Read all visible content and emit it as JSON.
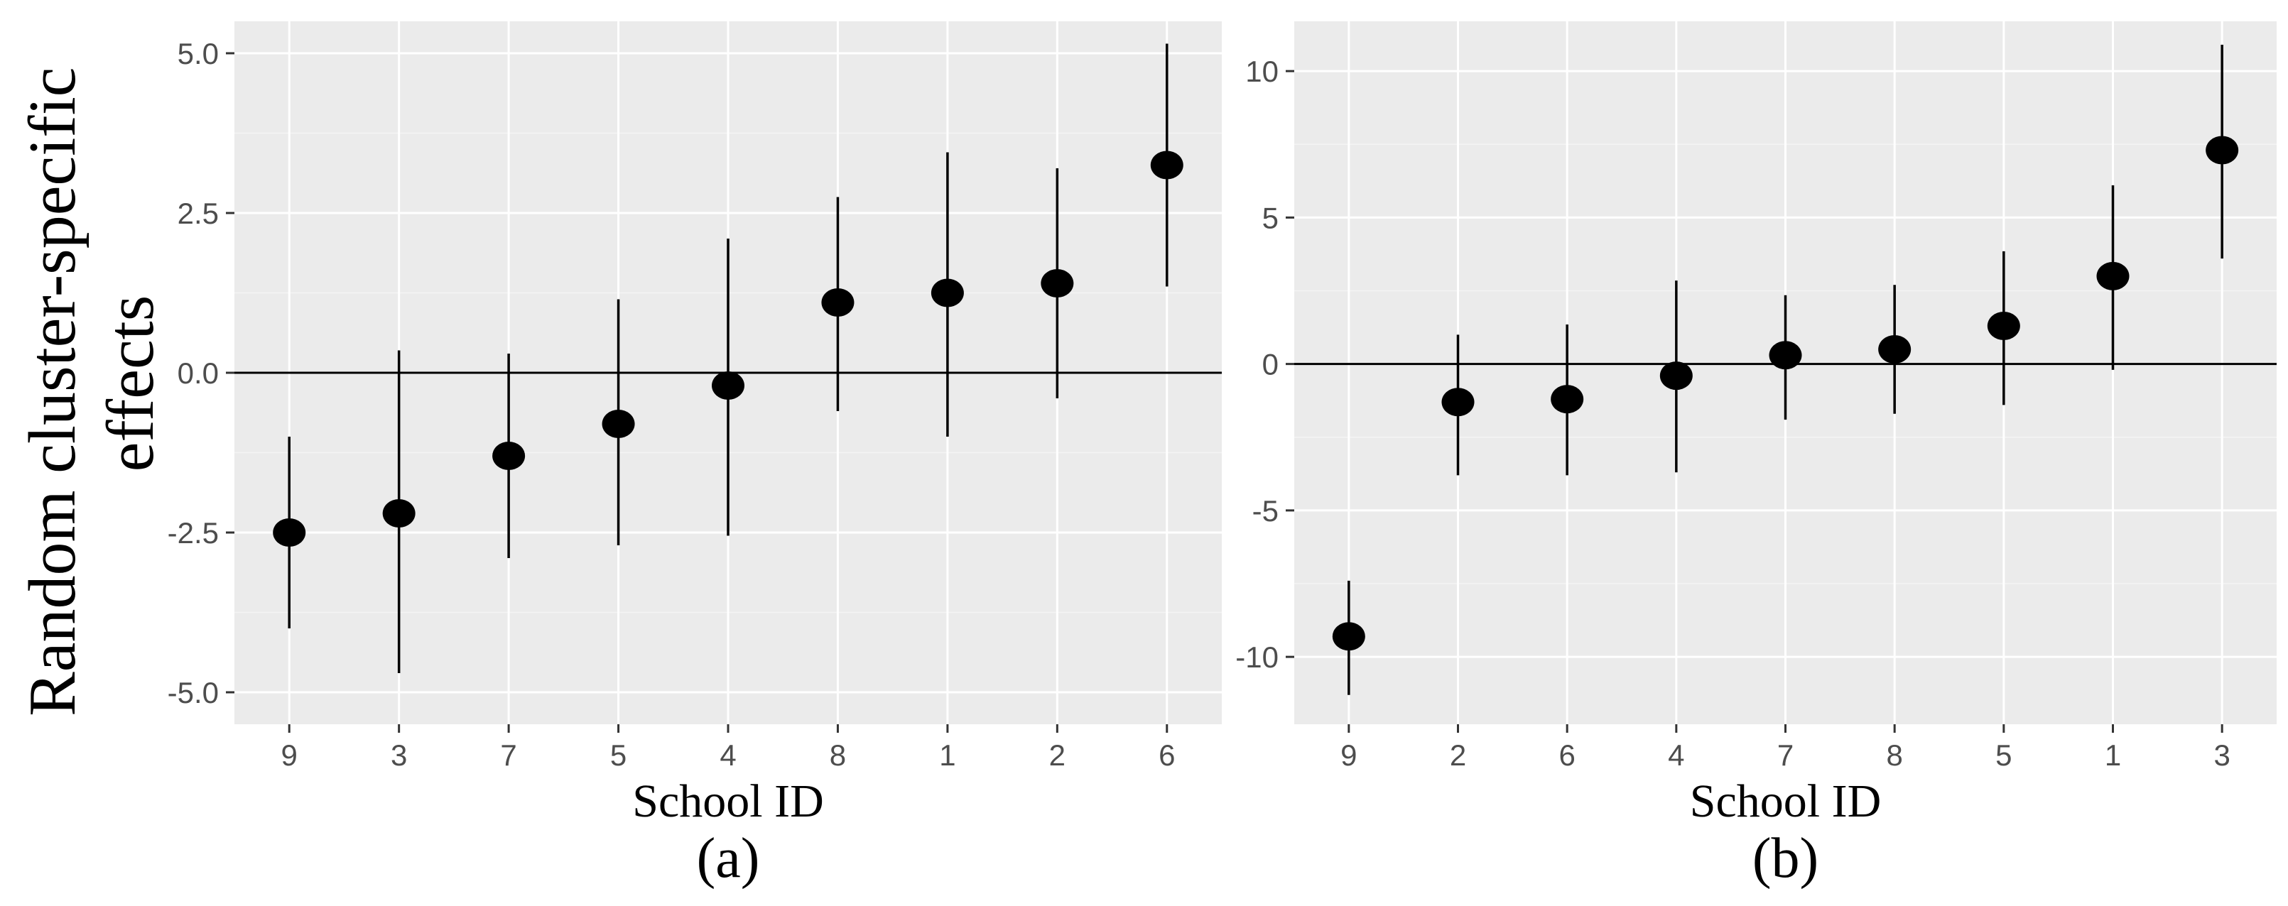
{
  "ylabel_lines": [
    "Random cluster-specific",
    "effects"
  ],
  "chart_data": [
    {
      "type": "scatter",
      "panel_label": "(a)",
      "xlabel": "School ID",
      "ylabel": "Random cluster-specific effects",
      "ylim": [
        -5.5,
        5.5
      ],
      "yticks": [
        -5.0,
        -2.5,
        0.0,
        2.5,
        5.0
      ],
      "ytick_labels": [
        "-5.0",
        "-2.5",
        "0.0",
        "2.5",
        "5.0"
      ],
      "reference_line": 0,
      "grid": true,
      "categories": [
        "9",
        "3",
        "7",
        "5",
        "4",
        "8",
        "1",
        "2",
        "6"
      ],
      "values": [
        -2.5,
        -2.2,
        -1.3,
        -0.8,
        -0.2,
        1.1,
        1.25,
        1.4,
        3.25
      ],
      "lower": [
        -4.0,
        -4.7,
        -2.9,
        -2.7,
        -2.55,
        -0.6,
        -1.0,
        -0.4,
        1.35
      ],
      "upper": [
        -1.0,
        0.35,
        0.3,
        1.15,
        2.1,
        2.75,
        3.45,
        3.2,
        5.15
      ],
      "bg_color": "#ebebeb",
      "point_color": "#000000"
    },
    {
      "type": "scatter",
      "panel_label": "(b)",
      "xlabel": "School ID",
      "ylabel": "",
      "ylim": [
        -12.3,
        11.7
      ],
      "yticks": [
        -10,
        -5,
        0,
        5,
        10
      ],
      "ytick_labels": [
        "-10",
        "-5",
        "0",
        "5",
        "10"
      ],
      "reference_line": 0,
      "grid": true,
      "categories": [
        "9",
        "2",
        "6",
        "4",
        "7",
        "8",
        "5",
        "1",
        "3"
      ],
      "values": [
        -9.3,
        -1.3,
        -1.2,
        -0.4,
        0.3,
        0.5,
        1.3,
        3.0,
        7.3
      ],
      "lower": [
        -11.3,
        -3.8,
        -3.8,
        -3.7,
        -1.9,
        -1.7,
        -1.4,
        -0.2,
        3.6
      ],
      "upper": [
        -7.4,
        1.0,
        1.35,
        2.85,
        2.35,
        2.7,
        3.85,
        6.1,
        10.9
      ],
      "bg_color": "#ebebeb",
      "point_color": "#000000"
    }
  ]
}
